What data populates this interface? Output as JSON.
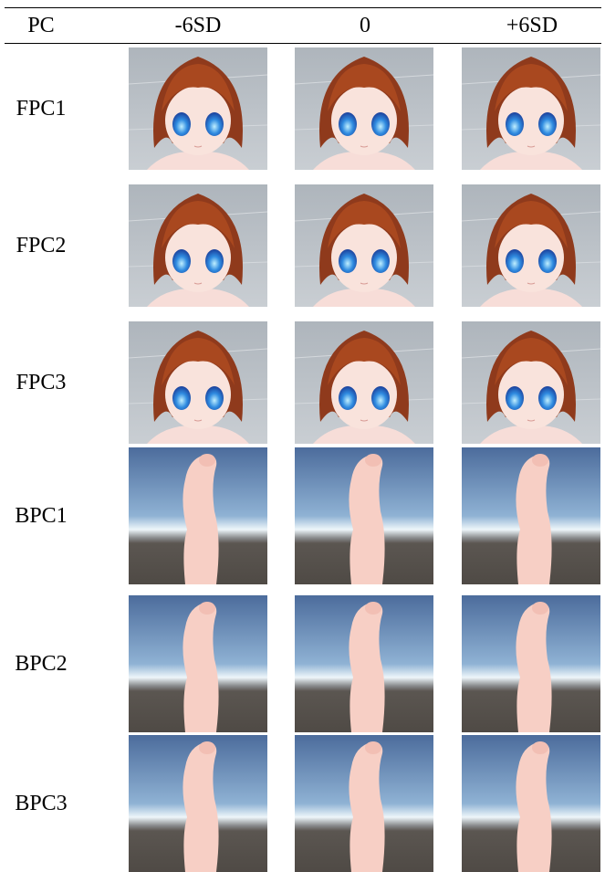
{
  "table": {
    "header": [
      "PC",
      "-6SD",
      "0",
      "+6SD"
    ],
    "rows": [
      "FPC1",
      "FPC2",
      "FPC3",
      "BPC1",
      "BPC2",
      "BPC3"
    ]
  }
}
